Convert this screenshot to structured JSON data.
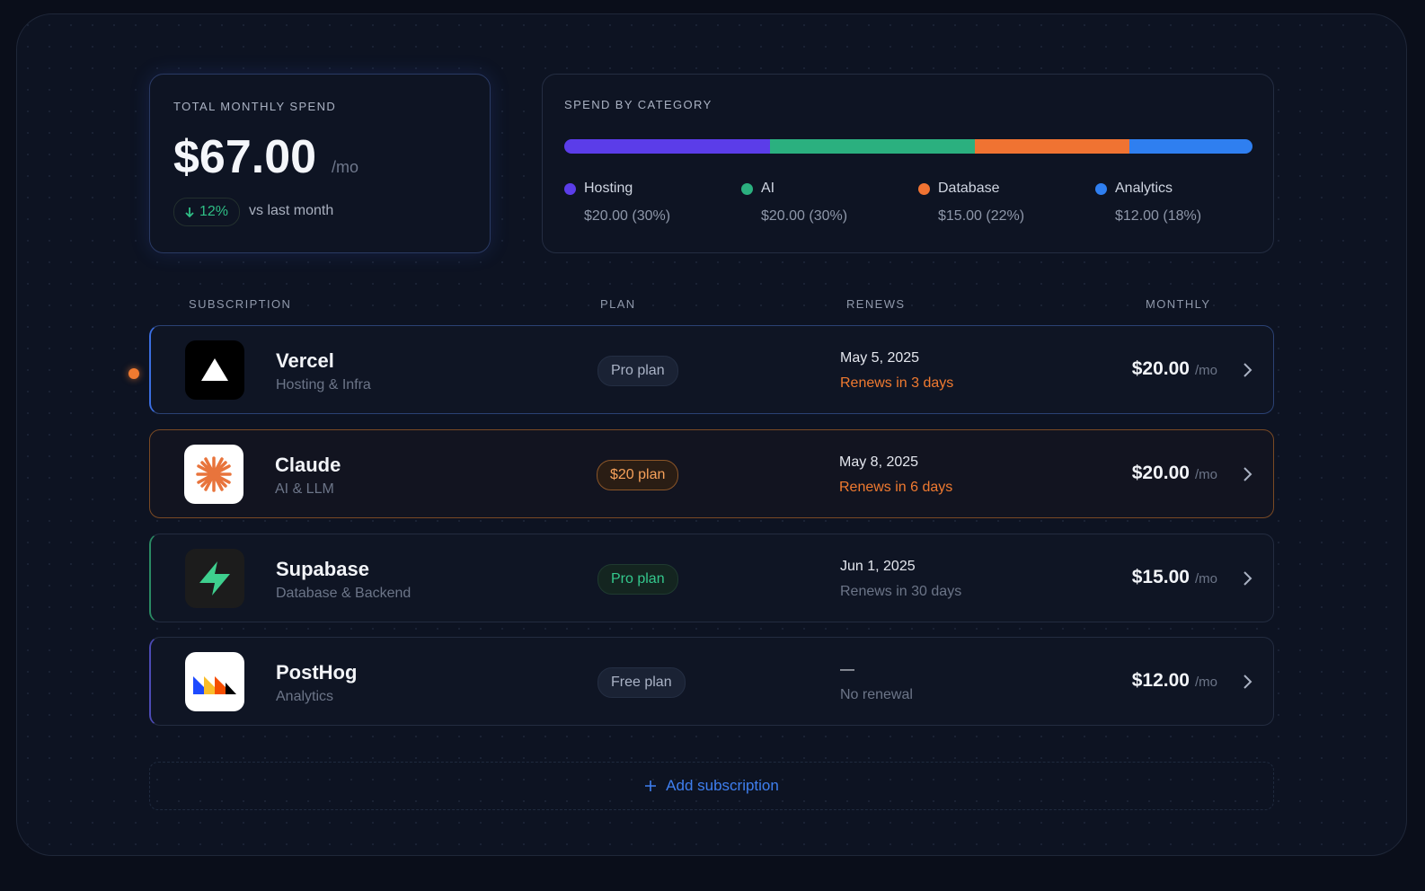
{
  "total": {
    "label": "TOTAL MONTHLY SPEND",
    "amount": "$67.00",
    "unit": "/mo",
    "change": "12%",
    "change_note": "vs last month"
  },
  "spend_by_category": {
    "title": "SPEND BY CATEGORY",
    "items": [
      {
        "name": "Hosting",
        "color": "#5b3de9",
        "value": 20,
        "label": "$20.00 (30%)"
      },
      {
        "name": "AI",
        "color": "#2bb07f",
        "value": 20,
        "label": "$20.00 (30%)"
      },
      {
        "name": "Database",
        "color": "#f07332",
        "value": 15,
        "label": "$15.00 (22%)"
      },
      {
        "name": "Analytics",
        "color": "#2f7ff0",
        "value": 12,
        "label": "$12.00 (18%)"
      }
    ]
  },
  "table": {
    "headers": [
      "SUBSCRIPTION",
      "PLAN",
      "RENEWS",
      "MONTHLY"
    ],
    "rows": [
      {
        "name": "Vercel",
        "category": "Hosting & Infra",
        "plan": "Pro plan",
        "date": "May 5, 2025",
        "renewal": "Renews in 3 days",
        "price": "$20.00",
        "unit": "/mo"
      },
      {
        "name": "Claude",
        "category": "AI & LLM",
        "plan": "$20 plan",
        "date": "May 8, 2025",
        "renewal": "Renews in 6 days",
        "price": "$20.00",
        "unit": "/mo"
      },
      {
        "name": "Supabase",
        "category": "Database & Backend",
        "plan": "Pro plan",
        "date": "Jun 1, 2025",
        "renewal": "Renews in 30 days",
        "price": "$15.00",
        "unit": "/mo"
      },
      {
        "name": "PostHog",
        "category": "Analytics",
        "plan": "Free plan",
        "date": "—",
        "renewal": "No renewal",
        "price": "$12.00",
        "unit": "/mo"
      }
    ]
  },
  "add_button": "Add subscription"
}
